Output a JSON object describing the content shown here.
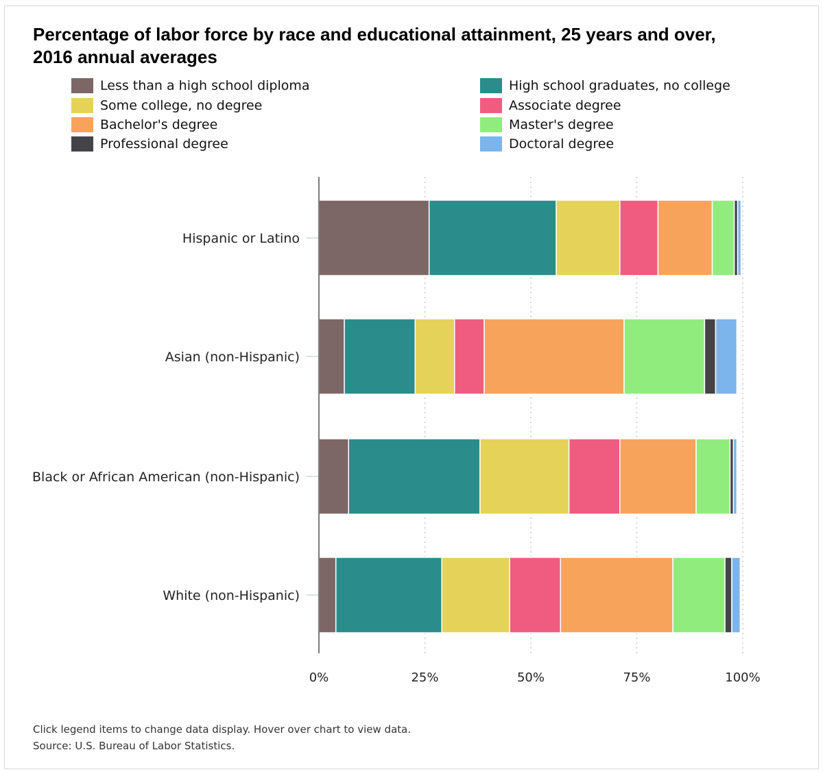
{
  "chart_data": {
    "type": "bar",
    "orientation": "horizontal",
    "stacked": true,
    "title": "Percentage of labor force by race and educational attainment, 25 years and over, 2016 annual averages",
    "xlim": [
      0,
      100
    ],
    "ticks": [
      "0%",
      "25%",
      "50%",
      "75%",
      "100%"
    ],
    "tick_values": [
      0,
      25,
      50,
      75,
      100
    ],
    "grid": "vertical dotted",
    "legend_position": "top",
    "categories": [
      "Hispanic or Latino",
      "Asian (non-Hispanic)",
      "Black or African American (non-Hispanic)",
      "White (non-Hispanic)"
    ],
    "series": [
      {
        "name": "Less than a high school diploma",
        "color": "#7d6766",
        "values": [
          26.0,
          6.0,
          7.0,
          4.0
        ]
      },
      {
        "name": "High school graduates, no college",
        "color": "#2a8d8b",
        "values": [
          30.0,
          16.7,
          31.0,
          25.0
        ]
      },
      {
        "name": "Some college, no degree",
        "color": "#e5d359",
        "values": [
          15.0,
          9.3,
          21.0,
          16.0
        ]
      },
      {
        "name": "Associate degree",
        "color": "#f05c7f",
        "values": [
          9.0,
          7.0,
          12.0,
          12.0
        ]
      },
      {
        "name": "Bachelor's degree",
        "color": "#f7a35c",
        "values": [
          12.8,
          33.0,
          18.0,
          26.5
        ]
      },
      {
        "name": "Master's degree",
        "color": "#90ed7d",
        "values": [
          5.2,
          19.0,
          8.0,
          12.3
        ]
      },
      {
        "name": "Professional degree",
        "color": "#434348",
        "values": [
          0.8,
          2.6,
          0.8,
          1.6
        ]
      },
      {
        "name": "Doctoral degree",
        "color": "#7cb5ec",
        "values": [
          0.8,
          5.0,
          0.8,
          2.0
        ]
      }
    ]
  },
  "notes": {
    "instruction": "Click legend items to change data display. Hover over chart to view data.",
    "source": "Source: U.S. Bureau of Labor Statistics."
  }
}
